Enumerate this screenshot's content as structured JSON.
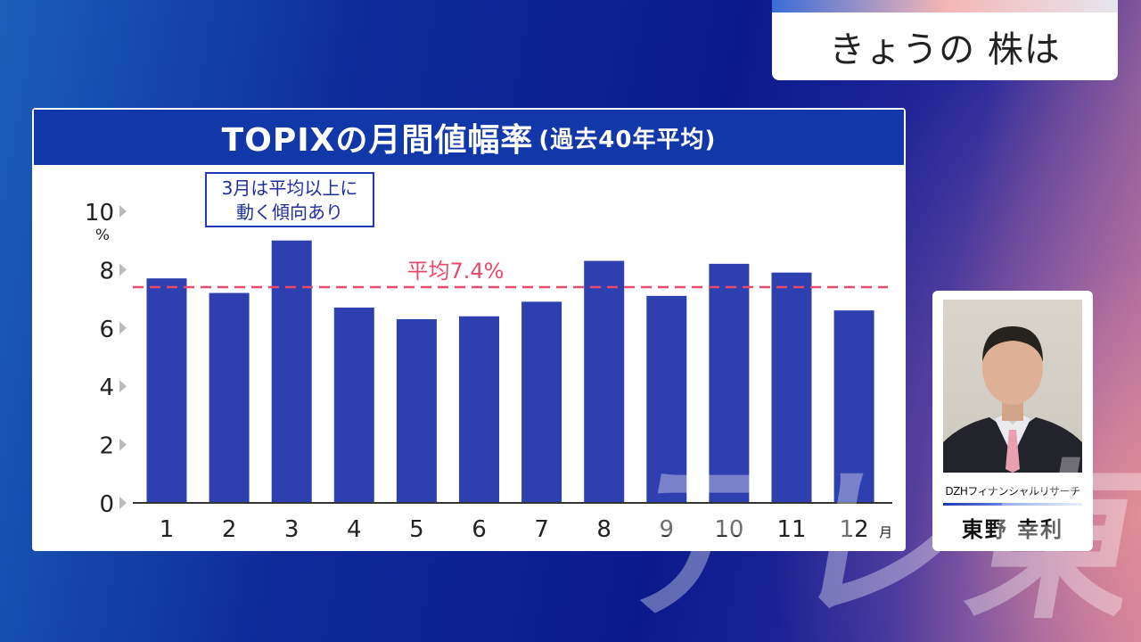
{
  "show_title": "きょうの 株は",
  "chart_data": {
    "type": "bar",
    "title": "TOPIXの月間値幅率",
    "subtitle": "(過去40年平均)",
    "categories": [
      "1",
      "2",
      "3",
      "4",
      "5",
      "6",
      "7",
      "8",
      "9",
      "10",
      "11",
      "12"
    ],
    "x_unit": "月",
    "values": [
      7.7,
      7.2,
      9.0,
      6.7,
      6.3,
      6.4,
      6.9,
      8.3,
      7.1,
      8.2,
      7.9,
      6.6
    ],
    "y_ticks": [
      "0",
      "2",
      "4",
      "6",
      "8",
      "10"
    ],
    "y_unit": "%",
    "ylim": [
      0,
      10
    ],
    "average": 7.4,
    "average_label": "平均7.4%",
    "annotation": [
      "3月は平均以上に",
      "動く傾向あり"
    ],
    "bar_color": "#2e3fb0",
    "average_line_color": "#e84a6a",
    "grid": false
  },
  "guest": {
    "organization": "DZHフィナンシャルリサーチ",
    "name": "東野 幸利"
  },
  "watermark": "テレ東",
  "colors": {
    "header_bg": "#1237a8",
    "panel_bg": "#ffffff",
    "text_dark": "#222222"
  }
}
